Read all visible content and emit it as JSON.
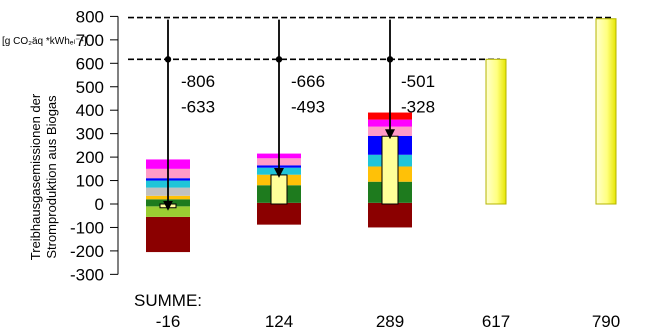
{
  "chart_data": {
    "type": "bar",
    "stacked": true,
    "ylim": [
      -300,
      800
    ],
    "yticks": [
      -300,
      -200,
      -100,
      0,
      100,
      200,
      300,
      400,
      500,
      600,
      700,
      800
    ],
    "ylabel_line1": "Treibhausgasemissionen der",
    "ylabel_line2": "Stromproduktion aus Biogas",
    "unit_label": "[g CO₂äq *kWhₑₗ⁻¹]",
    "summe_label": "SUMME:",
    "sums": [
      "-16",
      "124",
      "289",
      "617",
      "790"
    ],
    "reference_lines": [
      795,
      617
    ],
    "stacks": [
      {
        "segments": [
          {
            "from": -205,
            "to": -55,
            "color": "#8b0000"
          },
          {
            "from": -55,
            "to": -10,
            "color": "#9acd32"
          },
          {
            "from": -10,
            "to": 20,
            "color": "#1e7b1e"
          },
          {
            "from": 20,
            "to": 35,
            "color": "#ffc107"
          },
          {
            "from": 35,
            "to": 70,
            "color": "#c0c0c0"
          },
          {
            "from": 70,
            "to": 100,
            "color": "#20c5d8"
          },
          {
            "from": 100,
            "to": 110,
            "color": "#0000ff"
          },
          {
            "from": 110,
            "to": 150,
            "color": "#ff9bc8"
          },
          {
            "from": 150,
            "to": 190,
            "color": "#ff00ff"
          }
        ],
        "net": -16,
        "arrow_to": -16,
        "ann_upper": "-806",
        "ann_lower": "-633"
      },
      {
        "segments": [
          {
            "from": -88,
            "to": 5,
            "color": "#8b0000"
          },
          {
            "from": 5,
            "to": 80,
            "color": "#1e7b1e"
          },
          {
            "from": 80,
            "to": 125,
            "color": "#ffc107"
          },
          {
            "from": 125,
            "to": 155,
            "color": "#20c5d8"
          },
          {
            "from": 155,
            "to": 165,
            "color": "#0000ff"
          },
          {
            "from": 165,
            "to": 195,
            "color": "#ff9bc8"
          },
          {
            "from": 195,
            "to": 215,
            "color": "#ff00ff"
          }
        ],
        "net": 124,
        "arrow_to": 124,
        "ann_upper": "-666",
        "ann_lower": "-493"
      },
      {
        "segments": [
          {
            "from": -100,
            "to": 5,
            "color": "#8b0000"
          },
          {
            "from": 5,
            "to": 95,
            "color": "#1e7b1e"
          },
          {
            "from": 95,
            "to": 160,
            "color": "#ffc107"
          },
          {
            "from": 160,
            "to": 210,
            "color": "#20c5d8"
          },
          {
            "from": 210,
            "to": 290,
            "color": "#0000ff"
          },
          {
            "from": 290,
            "to": 330,
            "color": "#ff9bc8"
          },
          {
            "from": 330,
            "to": 360,
            "color": "#ff00ff"
          },
          {
            "from": 360,
            "to": 390,
            "color": "#ff0000"
          }
        ],
        "net": 289,
        "arrow_to": 289,
        "ann_upper": "-501",
        "ann_lower": "-328"
      },
      {
        "segments": [],
        "net": 617,
        "arrow_to": null,
        "ann_upper": "",
        "ann_lower": ""
      },
      {
        "segments": [],
        "net": 790,
        "arrow_to": null,
        "ann_upper": "",
        "ann_lower": ""
      }
    ]
  }
}
